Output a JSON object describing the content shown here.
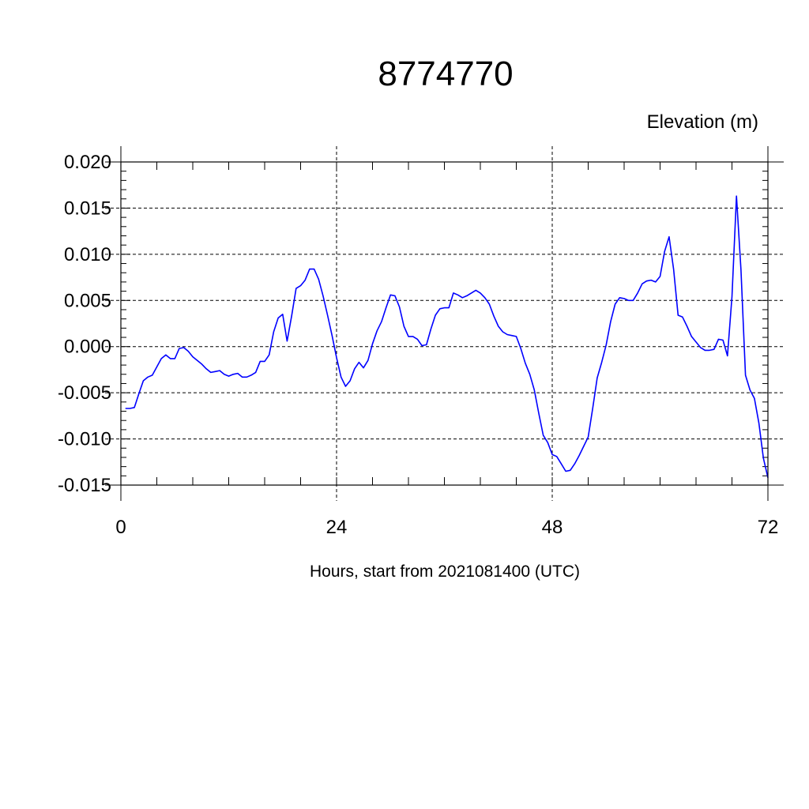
{
  "chart_data": {
    "type": "line",
    "title": "8774770",
    "subtitle": "Elevation (m)",
    "xlabel": "Hours, start from 2021081400 (UTC)",
    "ylabel": "",
    "xlim": [
      0,
      72
    ],
    "ylim": [
      -0.015,
      0.02
    ],
    "x_ticks": [
      0,
      24,
      48,
      72
    ],
    "x_tick_labels": [
      "0",
      "24",
      "48",
      "72"
    ],
    "y_ticks": [
      -0.015,
      -0.01,
      -0.005,
      0.0,
      0.005,
      0.01,
      0.015,
      0.02
    ],
    "y_tick_labels": [
      "-0.015",
      "-0.010",
      "-0.005",
      "0.000",
      "0.005",
      "0.010",
      "0.015",
      "0.020"
    ],
    "grid": true,
    "legend": "none",
    "series": [
      {
        "color": "#0000ff",
        "x": [
          0.5,
          1.0,
          1.5,
          2.0,
          2.5,
          3.0,
          3.5,
          4.0,
          4.5,
          5.0,
          5.5,
          6.0,
          6.5,
          7.0,
          7.5,
          8.0,
          8.5,
          9.0,
          9.5,
          10.0,
          10.5,
          11.0,
          11.5,
          12.0,
          12.5,
          13.0,
          13.5,
          14.0,
          14.5,
          15.0,
          15.5,
          16.0,
          16.5,
          17.0,
          17.5,
          18.0,
          18.5,
          19.0,
          19.5,
          20.0,
          20.5,
          21.0,
          21.5,
          22.0,
          22.5,
          23.0,
          23.5,
          24.0,
          24.5,
          25.0,
          25.5,
          26.0,
          26.5,
          27.0,
          27.5,
          28.0,
          28.5,
          29.0,
          29.5,
          30.0,
          30.5,
          31.0,
          31.5,
          32.0,
          32.5,
          33.0,
          33.5,
          34.0,
          34.5,
          35.0,
          35.5,
          36.0,
          36.5,
          37.0,
          37.5,
          38.0,
          38.5,
          39.0,
          39.5,
          40.0,
          40.5,
          41.0,
          41.5,
          42.0,
          42.5,
          43.0,
          43.5,
          44.0,
          44.5,
          45.0,
          45.5,
          46.0,
          46.5,
          47.0,
          47.5,
          48.0,
          48.5,
          49.0,
          49.5,
          50.0,
          50.5,
          51.0,
          51.5,
          52.0,
          52.5,
          53.0,
          53.5,
          54.0,
          54.5,
          55.0,
          55.5,
          56.0,
          56.5,
          57.0,
          57.5,
          58.0,
          58.5,
          59.0,
          59.5,
          60.0,
          60.5,
          61.0,
          61.5,
          62.0,
          62.5,
          63.0,
          63.5,
          64.0,
          64.5,
          65.0,
          65.5,
          66.0,
          66.5,
          67.0,
          67.5,
          68.0,
          68.5,
          69.0,
          69.5,
          70.0,
          70.5,
          71.0,
          71.5,
          72.0
        ],
        "values": [
          -0.0067,
          -0.0067,
          -0.0066,
          -0.0051,
          -0.0037,
          -0.0033,
          -0.0031,
          -0.0022,
          -0.0013,
          -0.0009,
          -0.0013,
          -0.0013,
          -0.0002,
          -0.0001,
          -0.0005,
          -0.0011,
          -0.0015,
          -0.0019,
          -0.0024,
          -0.0028,
          -0.0027,
          -0.0026,
          -0.003,
          -0.0032,
          -0.003,
          -0.0029,
          -0.0033,
          -0.0033,
          -0.0031,
          -0.0028,
          -0.0016,
          -0.0016,
          -0.0009,
          0.0016,
          0.0031,
          0.0035,
          0.0006,
          0.0033,
          0.0063,
          0.0066,
          0.0072,
          0.0084,
          0.0084,
          0.0073,
          0.0055,
          0.0034,
          0.0012,
          -0.0012,
          -0.0033,
          -0.0043,
          -0.0037,
          -0.0024,
          -0.0017,
          -0.0023,
          -0.0015,
          0.0003,
          0.0017,
          0.0027,
          0.0042,
          0.0056,
          0.0055,
          0.0043,
          0.0022,
          0.0011,
          0.0011,
          0.0008,
          0.0001,
          0.0002,
          0.0019,
          0.0034,
          0.0041,
          0.0042,
          0.0042,
          0.0058,
          0.0056,
          0.0053,
          0.0055,
          0.0058,
          0.0061,
          0.0058,
          0.0053,
          0.0046,
          0.0033,
          0.0022,
          0.0016,
          0.0013,
          0.0012,
          0.0011,
          -0.0002,
          -0.0018,
          -0.003,
          -0.0047,
          -0.0072,
          -0.0096,
          -0.0104,
          -0.0117,
          -0.0119,
          -0.0127,
          -0.0135,
          -0.0134,
          -0.0127,
          -0.0118,
          -0.0108,
          -0.0098,
          -0.0067,
          -0.0034,
          -0.0017,
          0.0002,
          0.0027,
          0.0046,
          0.0053,
          0.0052,
          0.005,
          0.005,
          0.0058,
          0.0068,
          0.0071,
          0.0072,
          0.007,
          0.0076,
          0.0103,
          0.0119,
          0.0084,
          0.0034,
          0.0032,
          0.0022,
          0.0011,
          0.0005,
          -0.0001,
          -0.0004,
          -0.0004,
          -0.0003,
          0.0008,
          0.0007,
          -0.001,
          0.0054,
          0.0163,
          0.0083,
          -0.0031,
          -0.0047,
          -0.0056,
          -0.0083,
          -0.0121,
          -0.0142
        ]
      }
    ]
  }
}
